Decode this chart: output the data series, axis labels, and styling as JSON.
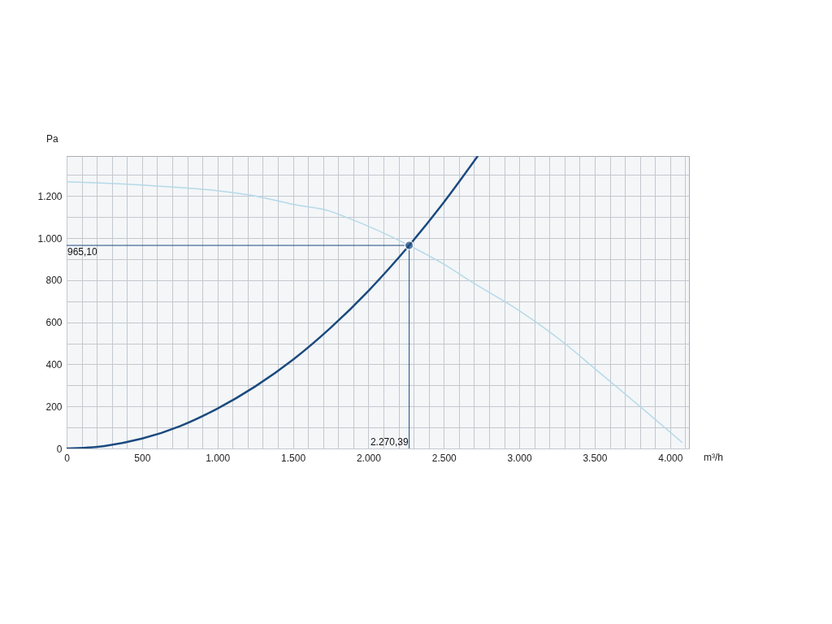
{
  "chart_data": {
    "type": "line",
    "xlabel": "m³/h",
    "ylabel": "Pa",
    "xlim": [
      0,
      4125
    ],
    "ylim": [
      0,
      1390
    ],
    "xticks": [
      0,
      {
        "value": 100,
        "label": null
      },
      {
        "value": 200,
        "label": null
      },
      {
        "value": 300,
        "label": null
      },
      {
        "value": 400,
        "label": null
      },
      500,
      {
        "value": 600,
        "label": null
      },
      {
        "value": 700,
        "label": null
      },
      {
        "value": 800,
        "label": null
      },
      {
        "value": 900,
        "label": null
      },
      {
        "value": 1000,
        "label": "1.000"
      },
      {
        "value": 1100,
        "label": null
      },
      {
        "value": 1200,
        "label": null
      },
      {
        "value": 1300,
        "label": null
      },
      {
        "value": 1400,
        "label": null
      },
      {
        "value": 1500,
        "label": "1.500"
      },
      {
        "value": 1600,
        "label": null
      },
      {
        "value": 1700,
        "label": null
      },
      {
        "value": 1800,
        "label": null
      },
      {
        "value": 1900,
        "label": null
      },
      {
        "value": 2000,
        "label": "2.000"
      },
      {
        "value": 2100,
        "label": null
      },
      {
        "value": 2200,
        "label": null
      },
      {
        "value": 2300,
        "label": null
      },
      {
        "value": 2400,
        "label": null
      },
      {
        "value": 2500,
        "label": "2.500"
      },
      {
        "value": 2600,
        "label": null
      },
      {
        "value": 2700,
        "label": null
      },
      {
        "value": 2800,
        "label": null
      },
      {
        "value": 2900,
        "label": null
      },
      {
        "value": 3000,
        "label": "3.000"
      },
      {
        "value": 3100,
        "label": null
      },
      {
        "value": 3200,
        "label": null
      },
      {
        "value": 3300,
        "label": null
      },
      {
        "value": 3400,
        "label": null
      },
      {
        "value": 3500,
        "label": "3.500"
      },
      {
        "value": 3600,
        "label": null
      },
      {
        "value": 3700,
        "label": null
      },
      {
        "value": 3800,
        "label": null
      },
      {
        "value": 3900,
        "label": null
      },
      {
        "value": 4000,
        "label": "4.000"
      },
      {
        "value": 4100,
        "label": null
      }
    ],
    "yticks": [
      0,
      {
        "value": 100,
        "label": null
      },
      200,
      {
        "value": 300,
        "label": null
      },
      400,
      {
        "value": 500,
        "label": null
      },
      600,
      {
        "value": 700,
        "label": null
      },
      800,
      {
        "value": 900,
        "label": null
      },
      {
        "value": 1000,
        "label": "1.000"
      },
      {
        "value": 1100,
        "label": null
      },
      {
        "value": 1200,
        "label": "1.200"
      },
      {
        "value": 1300,
        "label": null
      }
    ],
    "grid": true,
    "line_style": "solid",
    "series": [
      {
        "color": "#b5d9e8",
        "x": [
          0,
          500,
          1000,
          1250,
          1500,
          1740,
          1850,
          2270.39,
          2500,
          2700,
          3000,
          3300,
          3500,
          3800,
          4081
        ],
        "values": [
          1267,
          1252,
          1225,
          1200,
          1160,
          1129,
          1100,
          965.1,
          876,
          785,
          655,
          500,
          380,
          200,
          28
        ]
      },
      {
        "color": "#1b4a7e",
        "x": [
          0,
          250,
          500,
          750,
          1000,
          1250,
          1500,
          1750,
          2000,
          2270.39,
          2500,
          2725
        ],
        "values": [
          0,
          12,
          47,
          106,
          190,
          295,
          422,
          574,
          749,
          965.1,
          1170,
          1390
        ]
      },
      {
        "type": "scatter",
        "marker": "circle",
        "color": "#1b4a7e",
        "x": [
          2270.39
        ],
        "values": [
          965.1
        ]
      }
    ],
    "ref_lines": [
      {
        "axis": "y",
        "value": 965.1,
        "label": "965,10",
        "color": "#1b4a7e"
      },
      {
        "axis": "x",
        "value": 2270.39,
        "label": "2.270,39",
        "color": "#1b4a7e"
      }
    ]
  }
}
